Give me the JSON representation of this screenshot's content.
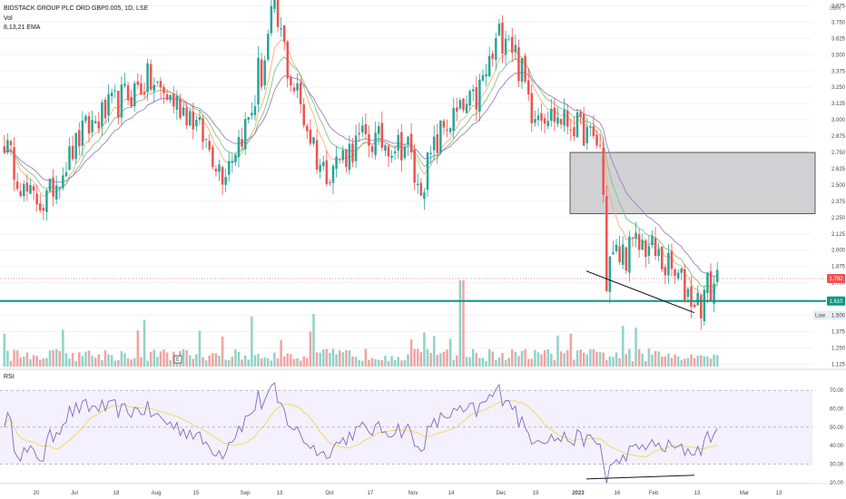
{
  "header": {
    "title": "BIDSTACK GROUP PLC ORD GBP0.005, 1D, LSE",
    "vol_label": "Vol",
    "ema_label": "8,13,21 EMA",
    "currency": "GBX"
  },
  "price_badges": {
    "last": "1.782",
    "support": "1.610",
    "low_label": "Low",
    "low_value": "1.500"
  },
  "event_marker": "E",
  "rsi_label": "RSI",
  "colors": {
    "up": "#26a69a",
    "down": "#ef5350",
    "vol_up": "#8fd3ca",
    "vol_down": "#f3a3a0",
    "ema8": "#f0b27a",
    "ema13": "#7bc47f",
    "ema21": "#9c7fc9",
    "rsi": "#7e6ac2",
    "rsi_ma": "#f2d65c",
    "support": "#089981",
    "zone": "#cfcfd2"
  },
  "chart_data": [
    {
      "type": "candlestick",
      "series": [
        {
          "name": "8,13,21 EMA"
        }
      ],
      "y_ticks": [
        "3.875",
        "3.750",
        "3.625",
        "3.500",
        "3.375",
        "3.250",
        "3.125",
        "3.000",
        "2.875",
        "2.750",
        "2.625",
        "2.500",
        "2.375",
        "2.250",
        "2.125",
        "2.000",
        "1.875",
        "1.750",
        "1.625",
        "1.500",
        "1.375",
        "1.250",
        "1.125"
      ],
      "x_ticks": [
        "20",
        "Jul",
        "18",
        "Aug",
        "15",
        "Sep",
        "13",
        "Oct",
        "17",
        "Nov",
        "14",
        "Dec",
        "19",
        "2023",
        "16",
        "Feb",
        "13",
        "Mar",
        "13"
      ],
      "ylim": [
        1.1,
        3.92
      ],
      "support_level": 1.61,
      "last_price": 1.782,
      "low": 1.5,
      "zone": {
        "top": 2.75,
        "bottom": 2.28
      },
      "divergence_line": [
        [
          "2022-12-30",
          1.84
        ],
        [
          "2023-02-13",
          1.52
        ]
      ],
      "segments": [
        {
          "n": 7,
          "from": 2.9,
          "to": 2.45,
          "vol": 0.22
        },
        {
          "n": 6,
          "from": 2.45,
          "to": 2.35,
          "vol": 0.2
        },
        {
          "n": 12,
          "from": 2.35,
          "to": 2.9,
          "vol": 0.22
        },
        {
          "n": 10,
          "from": 2.9,
          "to": 3.12,
          "vol": 0.25
        },
        {
          "n": 10,
          "from": 3.12,
          "to": 3.3,
          "vol": 0.27
        },
        {
          "n": 13,
          "from": 3.3,
          "to": 3.05,
          "vol": 0.25
        },
        {
          "n": 10,
          "from": 3.05,
          "to": 2.6,
          "vol": 0.24
        },
        {
          "n": 8,
          "from": 2.6,
          "to": 3.0,
          "vol": 0.25
        },
        {
          "n": 8,
          "from": 3.0,
          "to": 3.8,
          "vol": 0.45
        },
        {
          "n": 6,
          "from": 3.8,
          "to": 3.25,
          "vol": 0.4
        },
        {
          "n": 9,
          "from": 3.25,
          "to": 2.6,
          "vol": 0.35
        },
        {
          "n": 12,
          "from": 2.6,
          "to": 2.85,
          "vol": 0.25
        },
        {
          "n": 14,
          "from": 2.85,
          "to": 2.8,
          "vol": 0.25
        },
        {
          "n": 3,
          "from": 2.8,
          "to": 2.45,
          "vol": 0.3
        },
        {
          "n": 8,
          "from": 2.45,
          "to": 2.95,
          "vol": 0.28
        },
        {
          "n": 10,
          "from": 2.95,
          "to": 3.15,
          "vol": 0.26
        },
        {
          "n": 9,
          "from": 3.15,
          "to": 3.75,
          "vol": 0.35
        },
        {
          "n": 8,
          "from": 3.75,
          "to": 3.1,
          "vol": 0.3
        },
        {
          "n": 14,
          "from": 3.1,
          "to": 2.95,
          "vol": 0.22
        },
        {
          "n": 7,
          "from": 2.95,
          "to": 2.8,
          "vol": 0.22
        },
        {
          "n": 2,
          "from": 2.8,
          "to": 1.92,
          "vol": 0.9
        },
        {
          "n": 12,
          "from": 1.92,
          "to": 2.05,
          "vol": 0.3
        },
        {
          "n": 16,
          "from": 2.05,
          "to": 1.6,
          "vol": 0.3
        },
        {
          "n": 6,
          "from": 1.6,
          "to": 1.78,
          "vol": 0.35
        }
      ]
    },
    {
      "type": "line",
      "title": "RSI",
      "y_ticks": [
        "70.00",
        "60.00",
        "50.00",
        "40.00",
        "30.00",
        "20.00"
      ],
      "ylim": [
        17,
        75
      ],
      "overbought": 70,
      "oversold": 30,
      "series": [
        {
          "name": "RSI"
        }
      ],
      "divergence_line": [
        [
          "2022-12-30",
          22
        ],
        [
          "2023-02-13",
          24
        ]
      ]
    }
  ]
}
